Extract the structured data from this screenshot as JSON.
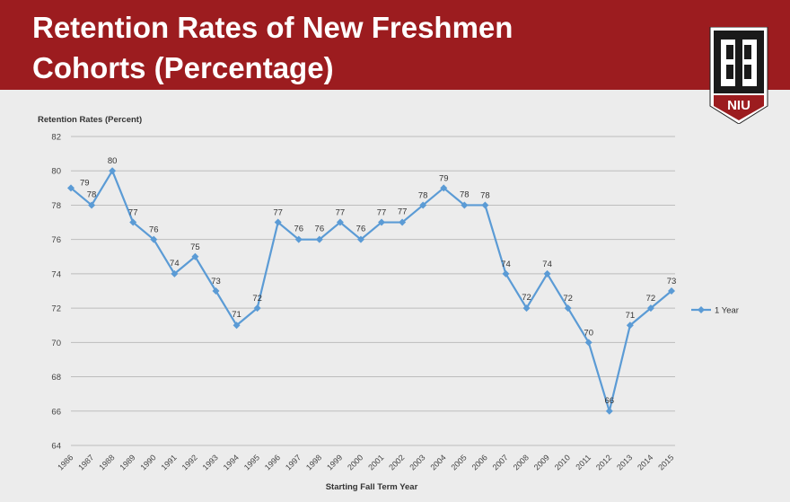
{
  "slide": {
    "title_line1": "Retention Rates of New Freshmen",
    "title_line2": "Cohorts (Percentage)",
    "logo_text": "NIU"
  },
  "colors": {
    "banner": "#9c1c1f",
    "series": "#5b9bd5",
    "grid": "#bdbdbd",
    "background": "#ececec"
  },
  "chart_data": {
    "type": "line",
    "ylabel": "Retention Rates (Percent)",
    "xlabel": "Starting Fall Term Year",
    "ylim": [
      64,
      82
    ],
    "yticks": [
      64,
      66,
      68,
      70,
      72,
      74,
      76,
      78,
      80,
      82
    ],
    "grid": true,
    "legend_position": "right",
    "categories": [
      "1986",
      "1987",
      "1988",
      "1989",
      "1990",
      "1991",
      "1992",
      "1993",
      "1994",
      "1995",
      "1996",
      "1997",
      "1998",
      "1999",
      "2000",
      "2001",
      "2002",
      "2003",
      "2004",
      "2005",
      "2006",
      "2007",
      "2008",
      "2009",
      "2010",
      "2011",
      "2012",
      "2013",
      "2014",
      "2015"
    ],
    "series": [
      {
        "name": "1 Year",
        "values": [
          79,
          78,
          80,
          77,
          76,
          74,
          75,
          73,
          71,
          72,
          77,
          76,
          76,
          77,
          76,
          77,
          77,
          78,
          79,
          78,
          78,
          74,
          72,
          74,
          72,
          70,
          66,
          71,
          72,
          73
        ]
      }
    ]
  }
}
